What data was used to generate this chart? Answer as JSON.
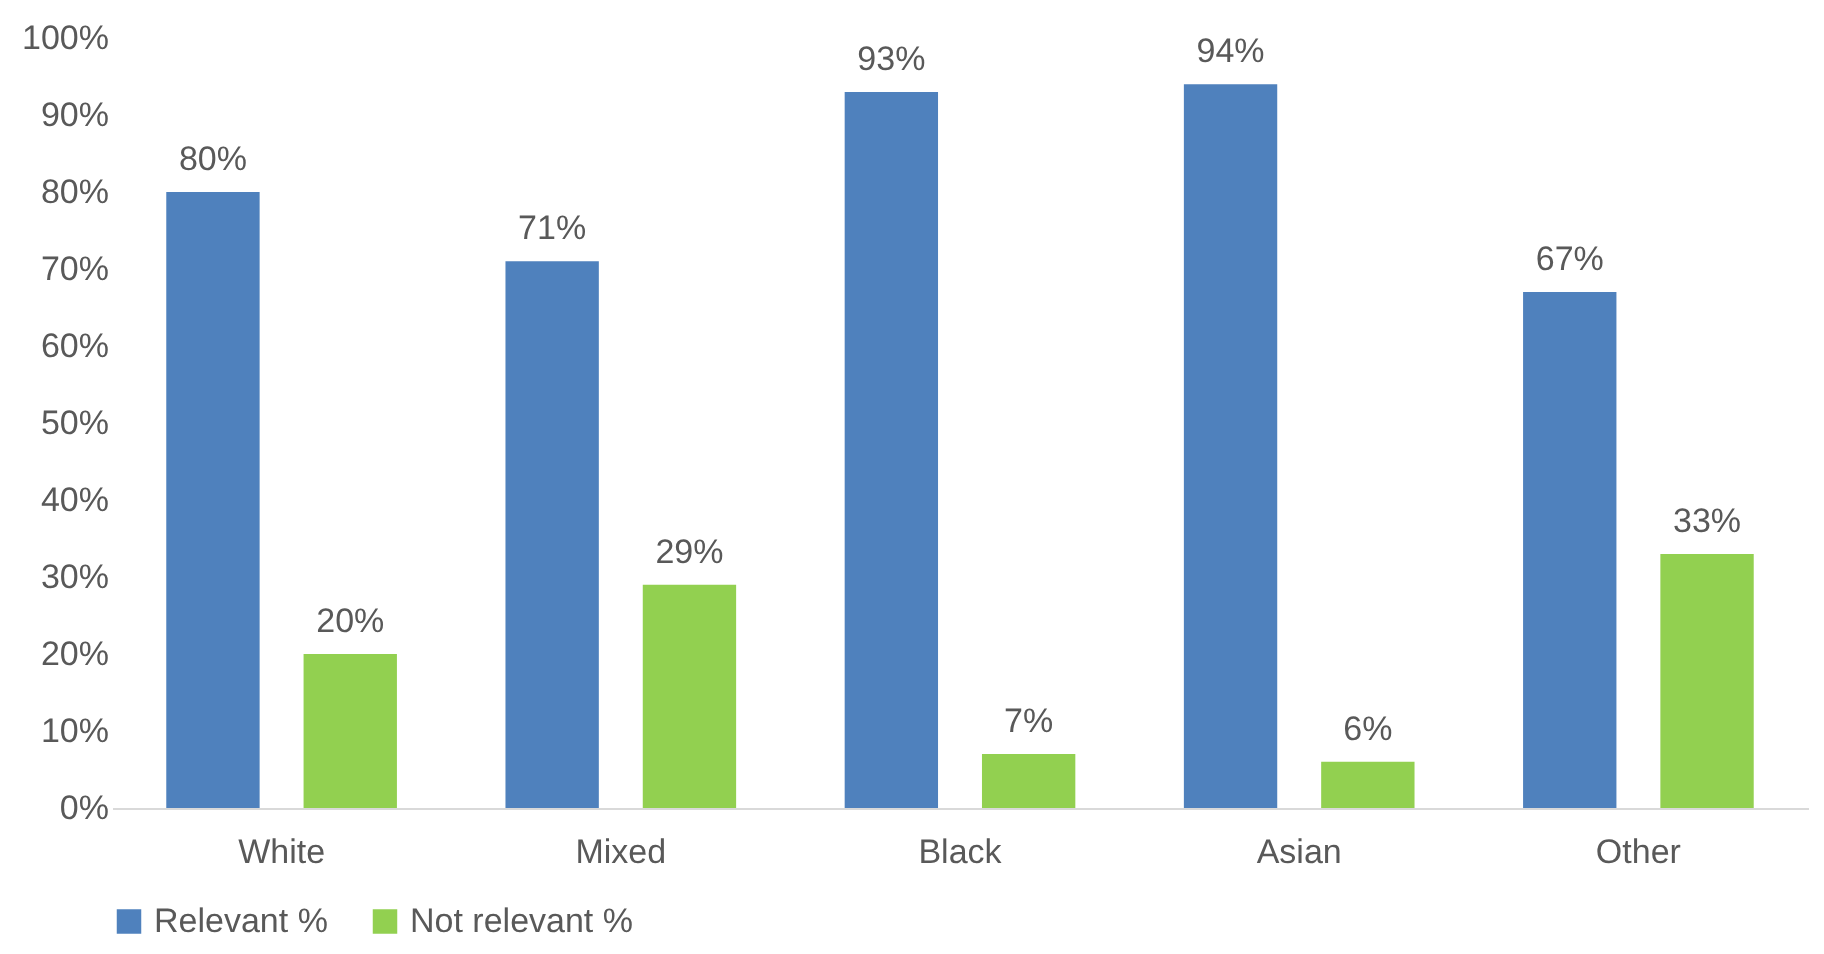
{
  "chart_data": {
    "type": "bar",
    "categories": [
      "White",
      "Mixed",
      "Black",
      "Asian",
      "Other"
    ],
    "series": [
      {
        "name": "Relevant %",
        "color": "#4f81bd",
        "values": [
          80,
          71,
          93,
          94,
          67
        ],
        "value_labels": [
          "80%",
          "71%",
          "93%",
          "94%",
          "67%"
        ]
      },
      {
        "name": "Not relevant %",
        "color": "#92d050",
        "values": [
          20,
          29,
          7,
          6,
          33
        ],
        "value_labels": [
          "20%",
          "29%",
          "7%",
          "6%",
          "33%"
        ]
      }
    ],
    "ylim": [
      0,
      100
    ],
    "yticks": [
      {
        "value": 0,
        "label": "0%"
      },
      {
        "value": 10,
        "label": "10%"
      },
      {
        "value": 20,
        "label": "20%"
      },
      {
        "value": 30,
        "label": "30%"
      },
      {
        "value": 40,
        "label": "40%"
      },
      {
        "value": 50,
        "label": "50%"
      },
      {
        "value": 60,
        "label": "60%"
      },
      {
        "value": 70,
        "label": "70%"
      },
      {
        "value": 80,
        "label": "80%"
      },
      {
        "value": 90,
        "label": "90%"
      },
      {
        "value": 100,
        "label": "100%"
      }
    ],
    "grid": false,
    "legend": "bottom"
  }
}
